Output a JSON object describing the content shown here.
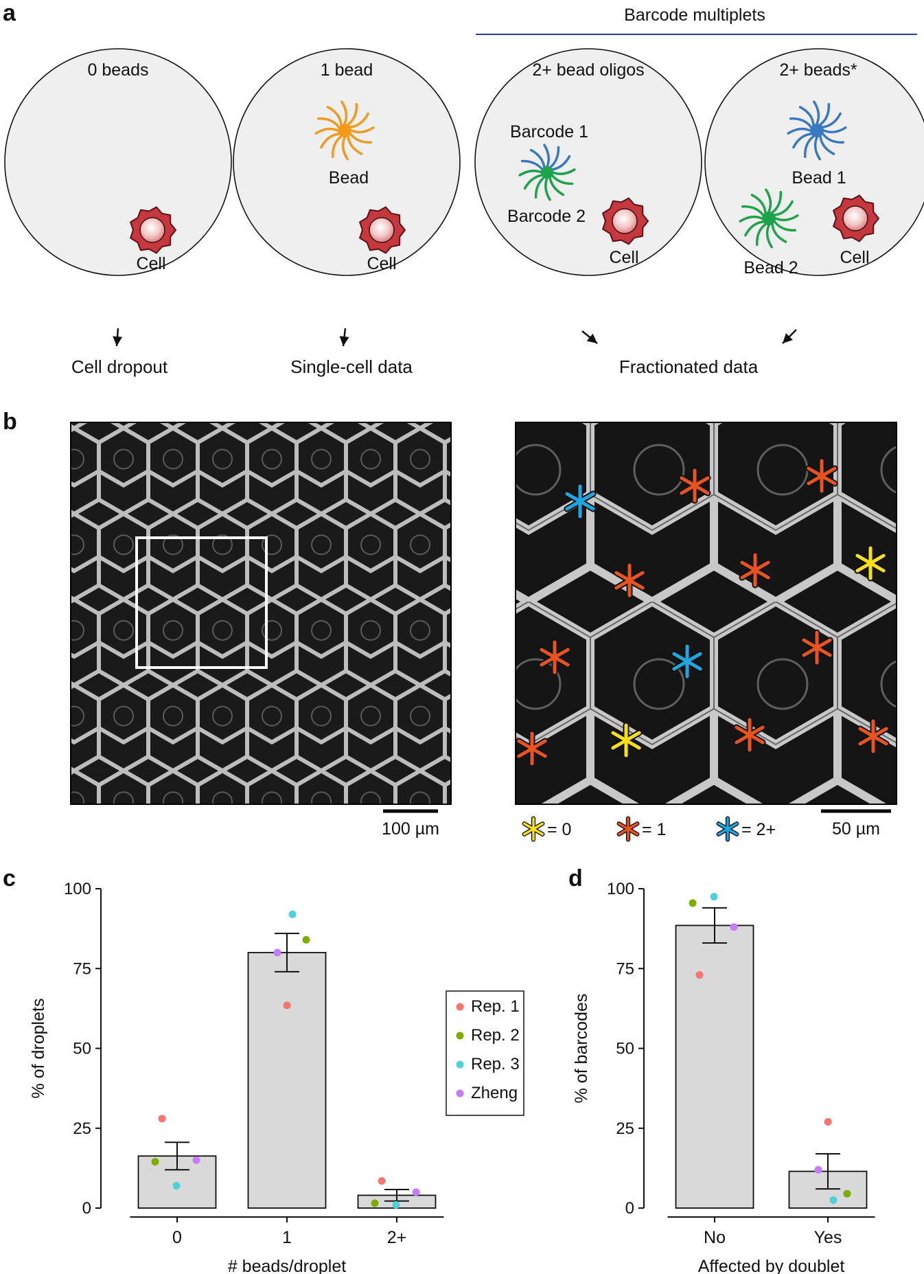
{
  "panel_a": {
    "letter": "a",
    "multiplets_header": "Barcode multiplets",
    "droplets": [
      {
        "title": "0 beads",
        "outcome": "Cell dropout",
        "labels": {
          "cell": "Cell"
        }
      },
      {
        "title": "1 bead",
        "outcome": "Single-cell data",
        "labels": {
          "bead": "Bead",
          "cell": "Cell"
        }
      },
      {
        "title": "2+ bead oligos",
        "labels": {
          "barcode1": "Barcode 1",
          "barcode2": "Barcode 2",
          "cell": "Cell"
        }
      },
      {
        "title": "2+ beads*",
        "labels": {
          "bead1": "Bead 1",
          "bead2": "Bead 2",
          "cell": "Cell"
        }
      }
    ],
    "shared_outcome": "Fractionated data",
    "colors": {
      "bead_orange": "#f39a1e",
      "bead_blue": "#3a78c2",
      "bead_green": "#1fa34a",
      "cell": "#c4383e"
    }
  },
  "panel_b": {
    "letter": "b",
    "scalebar_left": "100 µm",
    "scalebar_right": "50 µm",
    "legend": [
      {
        "label": "= 0",
        "color": "#f7e017",
        "icon": "asterisk-icon"
      },
      {
        "label": "= 1",
        "color": "#e9531f",
        "icon": "asterisk-icon"
      },
      {
        "label": "= 2+",
        "color": "#1ea6e0",
        "icon": "asterisk-icon"
      }
    ]
  },
  "chart_data": [
    {
      "panel": "c",
      "type": "bar",
      "categories": [
        "0",
        "1",
        "2+"
      ],
      "values": [
        16.3,
        80.0,
        4.0
      ],
      "error": [
        4.3,
        6.0,
        1.8
      ],
      "points": {
        "Rep. 1": [
          28,
          63.5,
          8.5
        ],
        "Rep. 2": [
          14.5,
          84,
          1.5
        ],
        "Rep. 3": [
          7,
          92,
          1
        ],
        "Zheng": [
          15,
          80,
          5
        ]
      },
      "xlabel": "# beads/droplet",
      "ylabel": "% of droplets",
      "ylim": [
        0,
        100
      ],
      "yticks": [
        "0",
        "25",
        "50",
        "75",
        "100"
      ],
      "legend": [
        "Rep. 1",
        "Rep. 2",
        "Rep. 3",
        "Zheng"
      ],
      "legend_placement": "right"
    },
    {
      "panel": "d",
      "type": "bar",
      "categories": [
        "No",
        "Yes"
      ],
      "values": [
        88.5,
        11.5
      ],
      "error": [
        5.5,
        5.5
      ],
      "points": {
        "Rep. 1": [
          73,
          27
        ],
        "Rep. 2": [
          95.5,
          4.5
        ],
        "Rep. 3": [
          97.5,
          2.5
        ],
        "Zheng": [
          88,
          12
        ]
      },
      "xlabel": "Affected by doublet",
      "ylabel": "% of barcodes",
      "ylim": [
        0,
        100
      ],
      "yticks": [
        "0",
        "25",
        "50",
        "75",
        "100"
      ]
    }
  ],
  "series_colors": {
    "Rep. 1": "#f8766d",
    "Rep. 2": "#7cae00",
    "Rep. 3": "#4fd1d9",
    "Zheng": "#c77cff"
  }
}
